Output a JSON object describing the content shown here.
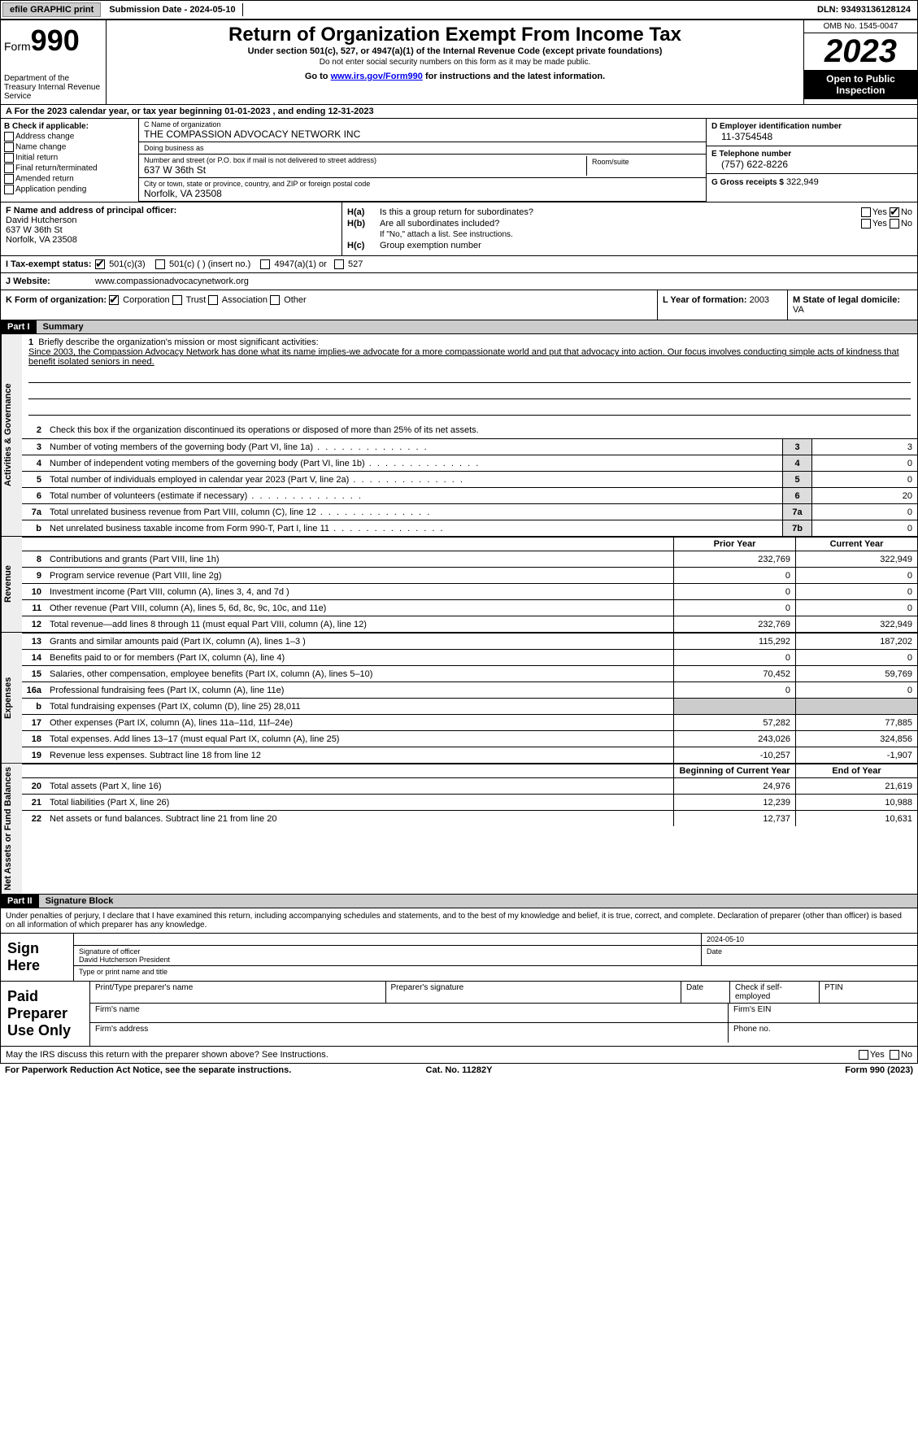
{
  "topbar": {
    "efile": "efile GRAPHIC print",
    "submission": "Submission Date - 2024-05-10",
    "dln": "DLN: 93493136128124"
  },
  "header": {
    "form_label": "Form",
    "form_num": "990",
    "dept": "Department of the Treasury Internal Revenue Service",
    "title": "Return of Organization Exempt From Income Tax",
    "sub": "Under section 501(c), 527, or 4947(a)(1) of the Internal Revenue Code (except private foundations)",
    "sub2": "Do not enter social security numbers on this form as it may be made public.",
    "goto_pre": "Go to ",
    "goto_link": "www.irs.gov/Form990",
    "goto_post": " for instructions and the latest information.",
    "omb": "OMB No. 1545-0047",
    "year": "2023",
    "open": "Open to Public Inspection"
  },
  "period": {
    "text": "A For the 2023 calendar year, or tax year beginning 01-01-2023   , and ending 12-31-2023"
  },
  "section_b": {
    "label": "B Check if applicable:",
    "opts": [
      "Address change",
      "Name change",
      "Initial return",
      "Final return/terminated",
      "Amended return",
      "Application pending"
    ]
  },
  "section_c": {
    "name_lbl": "C Name of organization",
    "name": "THE COMPASSION ADVOCACY NETWORK INC",
    "dba_lbl": "Doing business as",
    "dba": "",
    "addr_lbl": "Number and street (or P.O. box if mail is not delivered to street address)",
    "addr": "637 W 36th St",
    "room_lbl": "Room/suite",
    "city_lbl": "City or town, state or province, country, and ZIP or foreign postal code",
    "city": "Norfolk, VA  23508"
  },
  "section_d": {
    "ein_lbl": "D Employer identification number",
    "ein": "11-3754548",
    "tel_lbl": "E Telephone number",
    "tel": "(757) 622-8226",
    "gross_lbl": "G Gross receipts $",
    "gross": "322,949"
  },
  "section_f": {
    "lbl": "F  Name and address of principal officer:",
    "name": "David Hutcherson",
    "addr1": "637 W 36th St",
    "addr2": "Norfolk, VA  23508"
  },
  "section_h": {
    "ha_lbl": "H(a)",
    "ha_txt": "Is this a group return for subordinates?",
    "ha_no_checked": true,
    "hb_lbl": "H(b)",
    "hb_txt": "Are all subordinates included?",
    "hb_note": "If \"No,\" attach a list. See instructions.",
    "hc_lbl": "H(c)",
    "hc_txt": "Group exemption number",
    "yes": "Yes",
    "no": "No"
  },
  "section_i": {
    "lbl": "I  Tax-exempt status:",
    "c3_checked": true,
    "opts": [
      "501(c)(3)",
      "501(c) (  ) (insert no.)",
      "4947(a)(1) or",
      "527"
    ]
  },
  "section_j": {
    "lbl": "J  Website:",
    "val": "www.compassionadvocacynetwork.org"
  },
  "section_k": {
    "lbl": "K Form of organization:",
    "opts": [
      "Corporation",
      "Trust",
      "Association",
      "Other"
    ],
    "corp_checked": true,
    "year_lbl": "L Year of formation:",
    "year": "2003",
    "domicile_lbl": "M State of legal domicile:",
    "domicile": "VA"
  },
  "part1": {
    "hdr": "Part I",
    "title": "Summary",
    "vtab_gov": "Activities & Governance",
    "vtab_rev": "Revenue",
    "vtab_exp": "Expenses",
    "vtab_net": "Net Assets or Fund Balances",
    "mission_lbl": "Briefly describe the organization's mission or most significant activities:",
    "mission": "Since 2003, the Compassion Advocacy Network has done what its name implies-we advocate for a more compassionate world and put that advocacy into action. Our focus involves conducting simple acts of kindness that benefit isolated seniors in need.",
    "l2": "Check this box      if the organization discontinued its operations or disposed of more than 25% of its net assets.",
    "lines_gov": [
      {
        "n": "3",
        "d": "Number of voting members of the governing body (Part VI, line 1a)",
        "bn": "3",
        "bv": "3"
      },
      {
        "n": "4",
        "d": "Number of independent voting members of the governing body (Part VI, line 1b)",
        "bn": "4",
        "bv": "0"
      },
      {
        "n": "5",
        "d": "Total number of individuals employed in calendar year 2023 (Part V, line 2a)",
        "bn": "5",
        "bv": "0"
      },
      {
        "n": "6",
        "d": "Total number of volunteers (estimate if necessary)",
        "bn": "6",
        "bv": "20"
      },
      {
        "n": "7a",
        "d": "Total unrelated business revenue from Part VIII, column (C), line 12",
        "bn": "7a",
        "bv": "0"
      },
      {
        "n": "b",
        "d": "Net unrelated business taxable income from Form 990-T, Part I, line 11",
        "bn": "7b",
        "bv": "0"
      }
    ],
    "col_prior": "Prior Year",
    "col_current": "Current Year",
    "lines_rev": [
      {
        "n": "8",
        "d": "Contributions and grants (Part VIII, line 1h)",
        "c1": "232,769",
        "c2": "322,949"
      },
      {
        "n": "9",
        "d": "Program service revenue (Part VIII, line 2g)",
        "c1": "0",
        "c2": "0"
      },
      {
        "n": "10",
        "d": "Investment income (Part VIII, column (A), lines 3, 4, and 7d )",
        "c1": "0",
        "c2": "0"
      },
      {
        "n": "11",
        "d": "Other revenue (Part VIII, column (A), lines 5, 6d, 8c, 9c, 10c, and 11e)",
        "c1": "0",
        "c2": "0"
      },
      {
        "n": "12",
        "d": "Total revenue—add lines 8 through 11 (must equal Part VIII, column (A), line 12)",
        "c1": "232,769",
        "c2": "322,949"
      }
    ],
    "lines_exp": [
      {
        "n": "13",
        "d": "Grants and similar amounts paid (Part IX, column (A), lines 1–3 )",
        "c1": "115,292",
        "c2": "187,202"
      },
      {
        "n": "14",
        "d": "Benefits paid to or for members (Part IX, column (A), line 4)",
        "c1": "0",
        "c2": "0"
      },
      {
        "n": "15",
        "d": "Salaries, other compensation, employee benefits (Part IX, column (A), lines 5–10)",
        "c1": "70,452",
        "c2": "59,769"
      },
      {
        "n": "16a",
        "d": "Professional fundraising fees (Part IX, column (A), line 11e)",
        "c1": "0",
        "c2": "0"
      },
      {
        "n": "b",
        "d": "Total fundraising expenses (Part IX, column (D), line 25) 28,011",
        "c1": "",
        "c2": "",
        "shade": true
      },
      {
        "n": "17",
        "d": "Other expenses (Part IX, column (A), lines 11a–11d, 11f–24e)",
        "c1": "57,282",
        "c2": "77,885"
      },
      {
        "n": "18",
        "d": "Total expenses. Add lines 13–17 (must equal Part IX, column (A), line 25)",
        "c1": "243,026",
        "c2": "324,856"
      },
      {
        "n": "19",
        "d": "Revenue less expenses. Subtract line 18 from line 12",
        "c1": "-10,257",
        "c2": "-1,907"
      }
    ],
    "col_begin": "Beginning of Current Year",
    "col_end": "End of Year",
    "lines_net": [
      {
        "n": "20",
        "d": "Total assets (Part X, line 16)",
        "c1": "24,976",
        "c2": "21,619"
      },
      {
        "n": "21",
        "d": "Total liabilities (Part X, line 26)",
        "c1": "12,239",
        "c2": "10,988"
      },
      {
        "n": "22",
        "d": "Net assets or fund balances. Subtract line 21 from line 20",
        "c1": "12,737",
        "c2": "10,631"
      }
    ]
  },
  "part2": {
    "hdr": "Part II",
    "title": "Signature Block",
    "decl": "Under penalties of perjury, I declare that I have examined this return, including accompanying schedules and statements, and to the best of my knowledge and belief, it is true, correct, and complete. Declaration of preparer (other than officer) is based on all information of which preparer has any knowledge.",
    "sign_here": "Sign Here",
    "sig_date": "2024-05-10",
    "sig_officer_lbl": "Signature of officer",
    "sig_officer": "David Hutcherson President",
    "sig_type_lbl": "Type or print name and title",
    "date_lbl": "Date",
    "paid": "Paid Preparer Use Only",
    "p_name": "Print/Type preparer's name",
    "p_sig": "Preparer's signature",
    "p_date": "Date",
    "p_check": "Check       if self-employed",
    "p_ptin": "PTIN",
    "p_firm": "Firm's name",
    "p_ein": "Firm's EIN",
    "p_addr": "Firm's address",
    "p_phone": "Phone no."
  },
  "bottom": {
    "q": "May the IRS discuss this return with the preparer shown above? See Instructions.",
    "yes": "Yes",
    "no": "No"
  },
  "footer": {
    "l": "For Paperwork Reduction Act Notice, see the separate instructions.",
    "m": "Cat. No. 11282Y",
    "r": "Form 990 (2023)"
  }
}
